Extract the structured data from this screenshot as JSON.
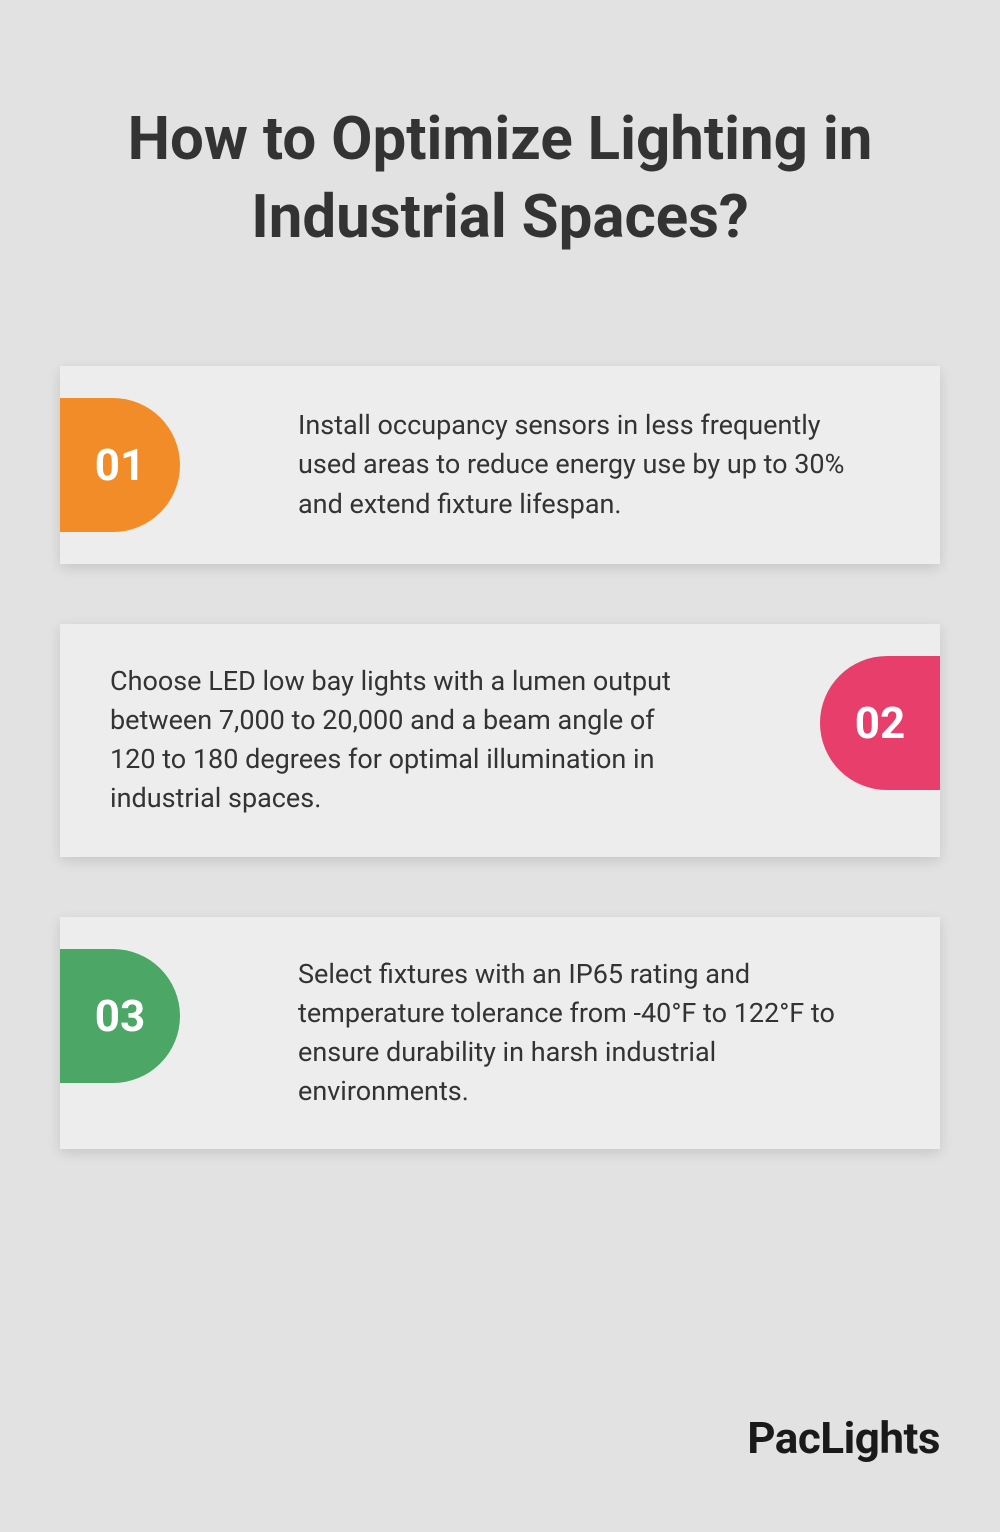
{
  "background_color": "#e2e2e2",
  "title": "How to Optimize Lighting in Industrial Spaces?",
  "title_color": "#333333",
  "title_fontsize": 60,
  "cards": [
    {
      "number": "01",
      "badge_color": "#f28c28",
      "badge_side": "left",
      "text": "Install occupancy sensors in less frequently used areas to reduce energy use by up to 30% and extend fixture lifespan."
    },
    {
      "number": "02",
      "badge_color": "#e83e6b",
      "badge_side": "right",
      "text": "Choose LED low bay lights with a lumen output between 7,000 to 20,000 and a beam angle of 120 to 180 degrees for optimal illumination in industrial spaces."
    },
    {
      "number": "03",
      "badge_color": "#4ca766",
      "badge_side": "left",
      "text": "Select fixtures with an IP65 rating and temperature tolerance from -40°F to 122°F to ensure durability in harsh industrial environments."
    }
  ],
  "card_background": "#ededed",
  "card_text_color": "#333333",
  "card_text_fontsize": 27,
  "badge_number_color": "#ffffff",
  "badge_number_fontsize": 44,
  "brand": "PacLights",
  "brand_color": "#1a1a1a",
  "brand_fontsize": 44
}
